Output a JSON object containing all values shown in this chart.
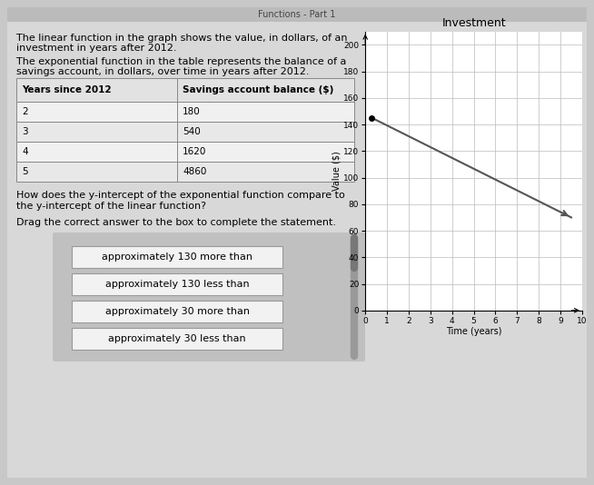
{
  "page_bg": "#c8c8c8",
  "content_bg": "#dcdcdc",
  "graph_title": "Investment",
  "xlabel": "Time (years)",
  "ylabel": "Value ($)",
  "ylim": [
    0,
    210
  ],
  "xlim": [
    0,
    10
  ],
  "yticks": [
    0,
    20,
    40,
    60,
    80,
    100,
    120,
    140,
    160,
    180,
    200
  ],
  "xticks": [
    0,
    1,
    2,
    3,
    4,
    5,
    6,
    7,
    8,
    9,
    10
  ],
  "linear_x0": 0.3,
  "linear_y0": 145,
  "linear_x1": 9.5,
  "linear_y1": 70,
  "linear_color": "#555555",
  "grid_color": "#bbbbbb",
  "table_header_col1": "Years since 2012",
  "table_header_col2": "Savings account balance ($)",
  "table_data": [
    [
      2,
      "180"
    ],
    [
      3,
      "540"
    ],
    [
      4,
      "1620"
    ],
    [
      5,
      "4860"
    ]
  ],
  "text_para1_line1": "The linear function in the graph shows the value, in dollars, of an",
  "text_para1_line2": "investment in years after 2012.",
  "text_para2_line1": "The exponential function in the table represents the balance of a",
  "text_para2_line2": "savings account, in dollars, over time in years after 2012.",
  "question_line1": "How does the y-intercept of the exponential function compare to",
  "question_line2": "the y-intercept of the linear function?",
  "drag_text": "Drag the correct answer to the box to complete the statement.",
  "answers": [
    "approximately 130 more than",
    "approximately 130 less than",
    "approximately 30 more than",
    "approximately 30 less than"
  ],
  "answer_box_bg": "#c0c0c0",
  "answer_btn_bg": "#f2f2f2",
  "answer_btn_border": "#999999",
  "scrollbar_color": "#999999",
  "axis_label_fontsize": 7,
  "tick_fontsize": 6.5,
  "graph_title_fontsize": 9,
  "text_fontsize": 8,
  "table_fontsize": 7.5,
  "header_top_text": "Functions - Part 1"
}
